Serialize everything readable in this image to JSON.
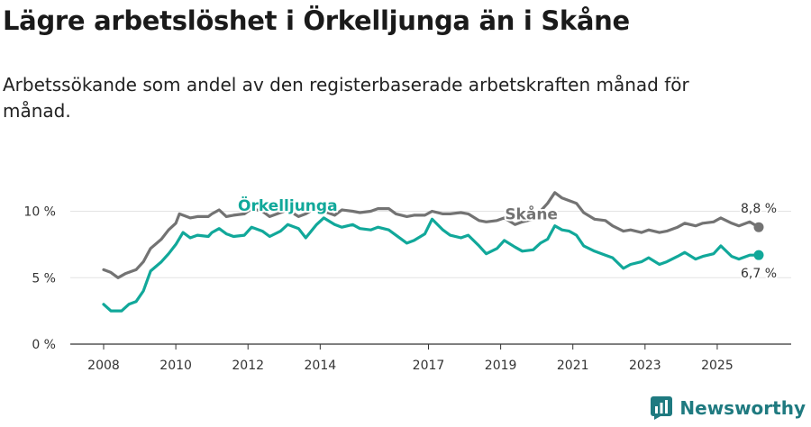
{
  "header": {
    "title": "Lägre arbetslöshet i Örkelljunga än i Skåne",
    "subtitle": "Arbetssökande som andel av den registerbaserade arbetskraften månad för månad."
  },
  "brand": {
    "name": "Newsworthy",
    "color": "#1f7a80"
  },
  "chart_data": {
    "type": "line",
    "title": "Lägre arbetslöshet i Örkelljunga än i Skåne",
    "xlabel": "",
    "ylabel": "",
    "xlim": [
      2008.0,
      2026.15
    ],
    "ylim": [
      0,
      12
    ],
    "grid": true,
    "y_ticks": [
      0,
      5,
      10
    ],
    "y_tick_labels": [
      "0 %",
      "5 %",
      "10 %"
    ],
    "x_ticks": [
      2008,
      2010,
      2012,
      2014,
      2017,
      2019,
      2021,
      2023,
      2025
    ],
    "x_tick_labels": [
      "2008",
      "2010",
      "2012",
      "2014",
      "2017",
      "2019",
      "2021",
      "2023",
      "2025"
    ],
    "series": [
      {
        "name": "Skåne",
        "color": "#737373",
        "label": "Skåne",
        "end_label": "8,8 %",
        "points": [
          [
            2008.0,
            5.6
          ],
          [
            2008.2,
            5.4
          ],
          [
            2008.4,
            5.0
          ],
          [
            2008.6,
            5.3
          ],
          [
            2008.9,
            5.6
          ],
          [
            2009.1,
            6.2
          ],
          [
            2009.3,
            7.2
          ],
          [
            2009.6,
            7.9
          ],
          [
            2009.8,
            8.6
          ],
          [
            2010.0,
            9.1
          ],
          [
            2010.1,
            9.8
          ],
          [
            2010.4,
            9.5
          ],
          [
            2010.6,
            9.6
          ],
          [
            2010.9,
            9.6
          ],
          [
            2011.0,
            9.8
          ],
          [
            2011.2,
            10.1
          ],
          [
            2011.4,
            9.6
          ],
          [
            2011.6,
            9.7
          ],
          [
            2011.9,
            9.8
          ],
          [
            2012.1,
            10.2
          ],
          [
            2012.4,
            10.0
          ],
          [
            2012.6,
            9.6
          ],
          [
            2012.9,
            9.9
          ],
          [
            2013.1,
            10.1
          ],
          [
            2013.4,
            9.6
          ],
          [
            2013.6,
            9.8
          ],
          [
            2013.9,
            10.3
          ],
          [
            2014.1,
            10.0
          ],
          [
            2014.4,
            9.7
          ],
          [
            2014.6,
            10.1
          ],
          [
            2014.9,
            10.0
          ],
          [
            2015.1,
            9.9
          ],
          [
            2015.4,
            10.0
          ],
          [
            2015.6,
            10.2
          ],
          [
            2015.9,
            10.2
          ],
          [
            2016.1,
            9.8
          ],
          [
            2016.4,
            9.6
          ],
          [
            2016.6,
            9.7
          ],
          [
            2016.9,
            9.7
          ],
          [
            2017.1,
            10.0
          ],
          [
            2017.4,
            9.8
          ],
          [
            2017.6,
            9.8
          ],
          [
            2017.9,
            9.9
          ],
          [
            2018.1,
            9.8
          ],
          [
            2018.4,
            9.3
          ],
          [
            2018.6,
            9.2
          ],
          [
            2018.9,
            9.3
          ],
          [
            2019.1,
            9.5
          ],
          [
            2019.4,
            9.0
          ],
          [
            2019.6,
            9.2
          ],
          [
            2019.9,
            9.4
          ],
          [
            2020.1,
            10.0
          ],
          [
            2020.3,
            10.6
          ],
          [
            2020.5,
            11.4
          ],
          [
            2020.7,
            11.0
          ],
          [
            2020.9,
            10.8
          ],
          [
            2021.1,
            10.6
          ],
          [
            2021.3,
            9.9
          ],
          [
            2021.6,
            9.4
          ],
          [
            2021.9,
            9.3
          ],
          [
            2022.1,
            8.9
          ],
          [
            2022.4,
            8.5
          ],
          [
            2022.6,
            8.6
          ],
          [
            2022.9,
            8.4
          ],
          [
            2023.1,
            8.6
          ],
          [
            2023.4,
            8.4
          ],
          [
            2023.6,
            8.5
          ],
          [
            2023.9,
            8.8
          ],
          [
            2024.1,
            9.1
          ],
          [
            2024.4,
            8.9
          ],
          [
            2024.6,
            9.1
          ],
          [
            2024.9,
            9.2
          ],
          [
            2025.1,
            9.5
          ],
          [
            2025.4,
            9.1
          ],
          [
            2025.6,
            8.9
          ],
          [
            2025.9,
            9.2
          ],
          [
            2026.15,
            8.8
          ]
        ]
      },
      {
        "name": "Örkelljunga",
        "color": "#11a89a",
        "label": "Örkelljunga",
        "end_label": "6,7 %",
        "points": [
          [
            2008.0,
            3.0
          ],
          [
            2008.2,
            2.5
          ],
          [
            2008.5,
            2.5
          ],
          [
            2008.7,
            3.0
          ],
          [
            2008.9,
            3.2
          ],
          [
            2009.1,
            4.0
          ],
          [
            2009.3,
            5.5
          ],
          [
            2009.6,
            6.2
          ],
          [
            2009.8,
            6.8
          ],
          [
            2010.0,
            7.5
          ],
          [
            2010.2,
            8.4
          ],
          [
            2010.4,
            8.0
          ],
          [
            2010.6,
            8.2
          ],
          [
            2010.9,
            8.1
          ],
          [
            2011.0,
            8.4
          ],
          [
            2011.2,
            8.7
          ],
          [
            2011.4,
            8.3
          ],
          [
            2011.6,
            8.1
          ],
          [
            2011.9,
            8.2
          ],
          [
            2012.1,
            8.8
          ],
          [
            2012.4,
            8.5
          ],
          [
            2012.6,
            8.1
          ],
          [
            2012.9,
            8.5
          ],
          [
            2013.1,
            9.0
          ],
          [
            2013.4,
            8.7
          ],
          [
            2013.6,
            8.0
          ],
          [
            2013.9,
            9.0
          ],
          [
            2014.1,
            9.5
          ],
          [
            2014.4,
            9.0
          ],
          [
            2014.6,
            8.8
          ],
          [
            2014.9,
            9.0
          ],
          [
            2015.1,
            8.7
          ],
          [
            2015.4,
            8.6
          ],
          [
            2015.6,
            8.8
          ],
          [
            2015.9,
            8.6
          ],
          [
            2016.1,
            8.2
          ],
          [
            2016.4,
            7.6
          ],
          [
            2016.6,
            7.8
          ],
          [
            2016.9,
            8.3
          ],
          [
            2017.1,
            9.4
          ],
          [
            2017.4,
            8.6
          ],
          [
            2017.6,
            8.2
          ],
          [
            2017.9,
            8.0
          ],
          [
            2018.1,
            8.2
          ],
          [
            2018.4,
            7.4
          ],
          [
            2018.6,
            6.8
          ],
          [
            2018.9,
            7.2
          ],
          [
            2019.1,
            7.8
          ],
          [
            2019.4,
            7.3
          ],
          [
            2019.6,
            7.0
          ],
          [
            2019.9,
            7.1
          ],
          [
            2020.1,
            7.6
          ],
          [
            2020.3,
            7.9
          ],
          [
            2020.5,
            8.9
          ],
          [
            2020.7,
            8.6
          ],
          [
            2020.9,
            8.5
          ],
          [
            2021.1,
            8.2
          ],
          [
            2021.3,
            7.4
          ],
          [
            2021.6,
            7.0
          ],
          [
            2021.9,
            6.7
          ],
          [
            2022.1,
            6.5
          ],
          [
            2022.4,
            5.7
          ],
          [
            2022.6,
            6.0
          ],
          [
            2022.9,
            6.2
          ],
          [
            2023.1,
            6.5
          ],
          [
            2023.4,
            6.0
          ],
          [
            2023.6,
            6.2
          ],
          [
            2023.9,
            6.6
          ],
          [
            2024.1,
            6.9
          ],
          [
            2024.4,
            6.4
          ],
          [
            2024.6,
            6.6
          ],
          [
            2024.9,
            6.8
          ],
          [
            2025.1,
            7.4
          ],
          [
            2025.4,
            6.6
          ],
          [
            2025.6,
            6.4
          ],
          [
            2025.9,
            6.7
          ],
          [
            2026.15,
            6.7
          ]
        ]
      }
    ]
  }
}
